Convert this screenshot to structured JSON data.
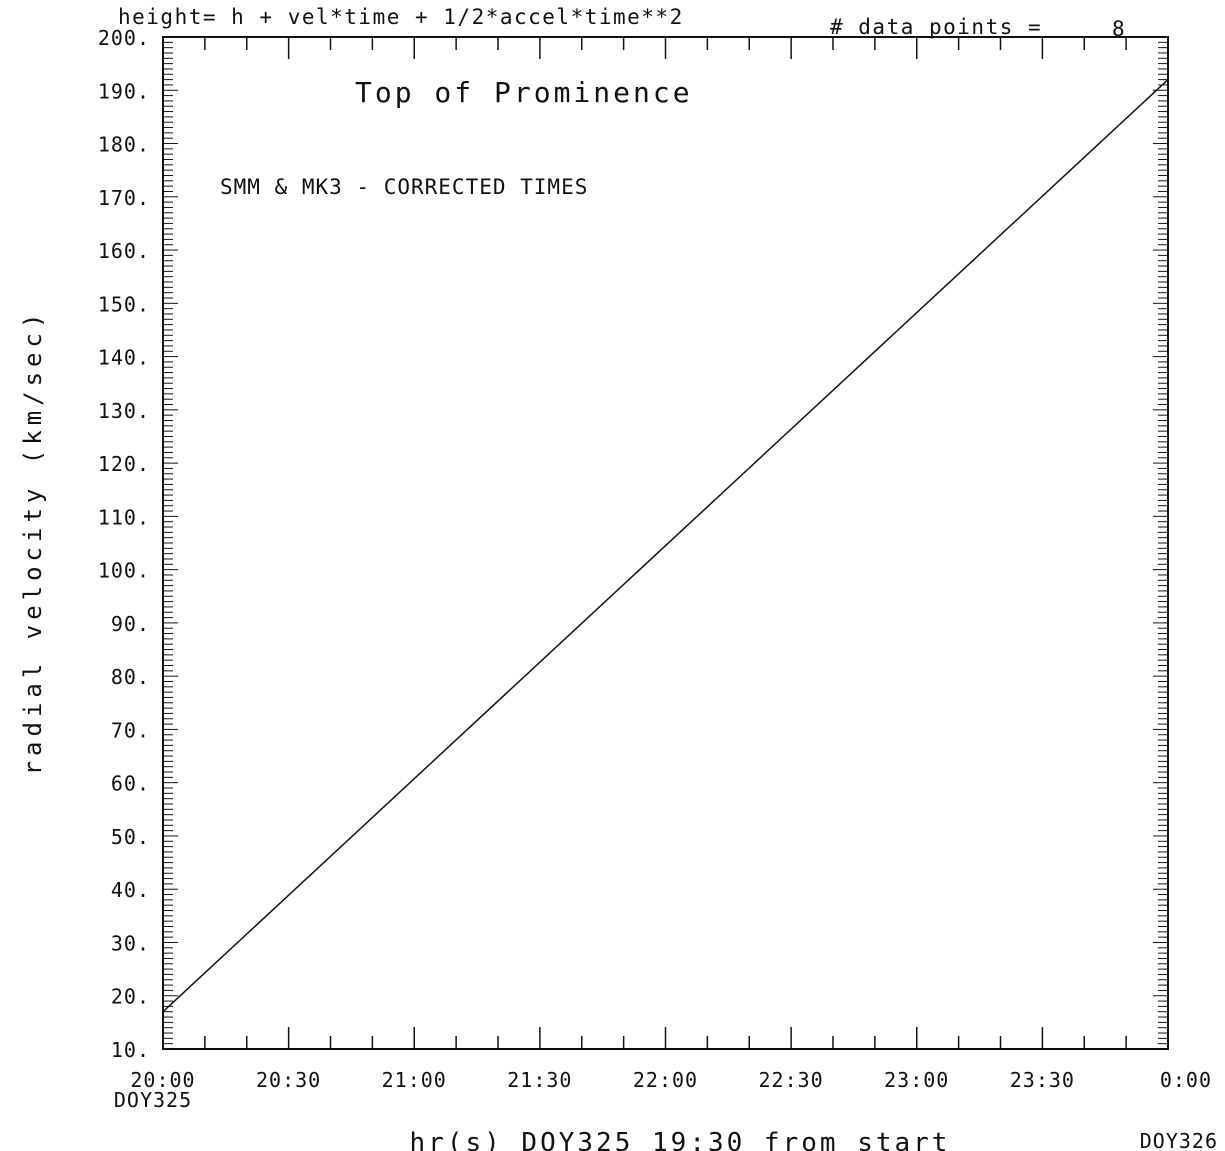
{
  "header": {
    "equation": "height= h + vel*time + 1/2*accel*time**2",
    "data_points_label": "# data points =",
    "data_points_value": "8"
  },
  "chart_data": {
    "type": "line",
    "title": "Top of Prominence",
    "annotation": "SMM & MK3 - CORRECTED TIMES",
    "ylabel": "radial velocity (km/sec)",
    "xlabel": "hr(s) DOY325 19:30 from start",
    "ylim": [
      10,
      200
    ],
    "xlim": [
      "DOY325 20:00",
      "DOY326 0:00"
    ],
    "y_ticks": [
      "10.",
      "20.",
      "30.",
      "40.",
      "50.",
      "60.",
      "70.",
      "80.",
      "90.",
      "100.",
      "110.",
      "120.",
      "130.",
      "140.",
      "150.",
      "160.",
      "170.",
      "180.",
      "190.",
      "200."
    ],
    "x_ticks": [
      {
        "time": "20:00",
        "day": "DOY325"
      },
      {
        "time": "20:30",
        "day": ""
      },
      {
        "time": "21:00",
        "day": ""
      },
      {
        "time": "21:30",
        "day": ""
      },
      {
        "time": "22:00",
        "day": ""
      },
      {
        "time": "22:30",
        "day": ""
      },
      {
        "time": "23:00",
        "day": ""
      },
      {
        "time": "23:30",
        "day": ""
      },
      {
        "time": "0:00",
        "day": "DOY326"
      }
    ],
    "series": [
      {
        "x": [
          "DOY325 20:00",
          "DOY326 0:00"
        ],
        "values": [
          17,
          192
        ]
      }
    ],
    "grid": false,
    "line_color": "#111111"
  }
}
